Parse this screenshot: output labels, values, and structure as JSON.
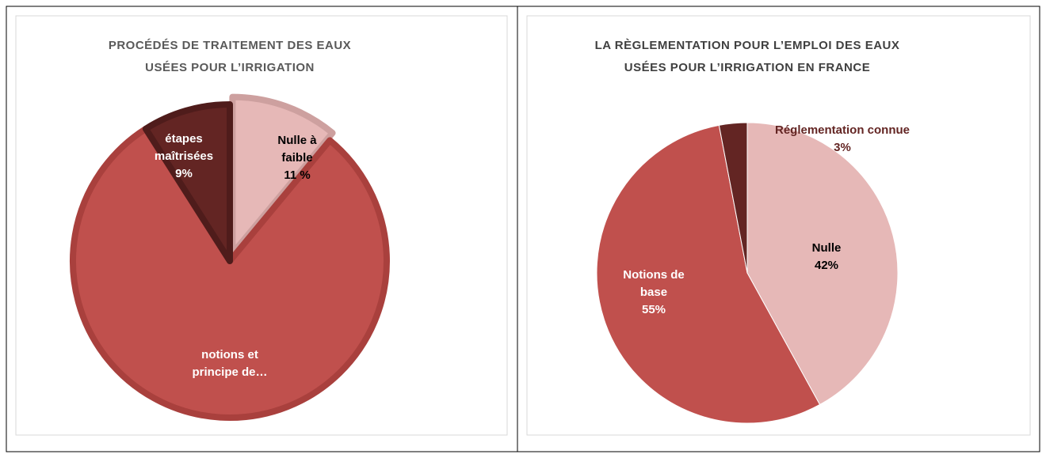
{
  "chart_data": [
    {
      "type": "pie",
      "title": "PROCÉDÉS DE TRAITEMENT DES EAUX USÉES POUR L’IRRIGATION",
      "categories": [
        "Nulle à faible",
        "notions et principe de…",
        "étapes maîtrisées"
      ],
      "values": [
        11,
        80,
        9
      ],
      "value_labels": [
        "11 %",
        null,
        "9%"
      ],
      "colors": [
        "#e6b8b7",
        "#c0504d",
        "#632523"
      ]
    },
    {
      "type": "pie",
      "title": "LA RÈGLEMENTATION POUR L’EMPLOI DES EAUX USÉES POUR L’IRRIGATION EN FRANCE",
      "categories": [
        "Nulle",
        "Notions de base",
        "Réglementation connue"
      ],
      "values": [
        42,
        55,
        3
      ],
      "value_labels": [
        "42%",
        "55%",
        "3%"
      ],
      "colors": [
        "#e6b8b7",
        "#c0504d",
        "#632523"
      ]
    }
  ]
}
